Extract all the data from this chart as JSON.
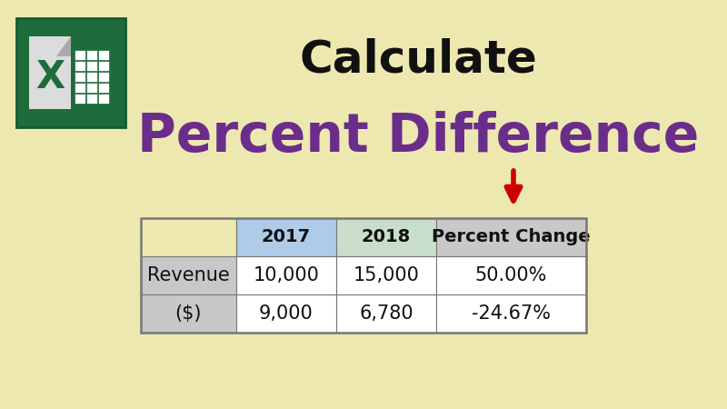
{
  "background_color": "#EDE8B0",
  "title_calculate": "Calculate",
  "title_percent_diff": "Percent Difference",
  "title_calculate_color": "#111111",
  "title_percent_diff_color": "#6B2D8B",
  "title_calculate_fontsize": 36,
  "title_percent_diff_fontsize": 42,
  "arrow_color": "#CC0000",
  "table_header_row": [
    "",
    "2017",
    "2018",
    "Percent Change"
  ],
  "table_row1": [
    "Revenue\n($)",
    "10,000\n9,000",
    "15,000\n6,780",
    "50.00%\n-24.67%"
  ],
  "table_row1_col0": "Revenue",
  "table_row1_col1": "10,000",
  "table_row1_col2": "15,000",
  "table_row1_col3": "50.00%",
  "table_row2_col0": "($)",
  "table_row2_col1": "9,000",
  "table_row2_col2": "6,780",
  "table_row2_col3": "-24.67%",
  "col0_bg": "#C8C8C8",
  "col1_bg": "#AECCE8",
  "col2_bg": "#C8DECA",
  "col3_bg": "#C8C8C8",
  "data_bg": "#FFFFFF",
  "cell_text_color": "#111111",
  "cell_fontsize": 15,
  "header_fontsize": 14,
  "border_color": "#777777",
  "excel_green_dark": "#1E6B3C",
  "excel_green_mid": "#217346",
  "excel_white": "#FFFFFF"
}
